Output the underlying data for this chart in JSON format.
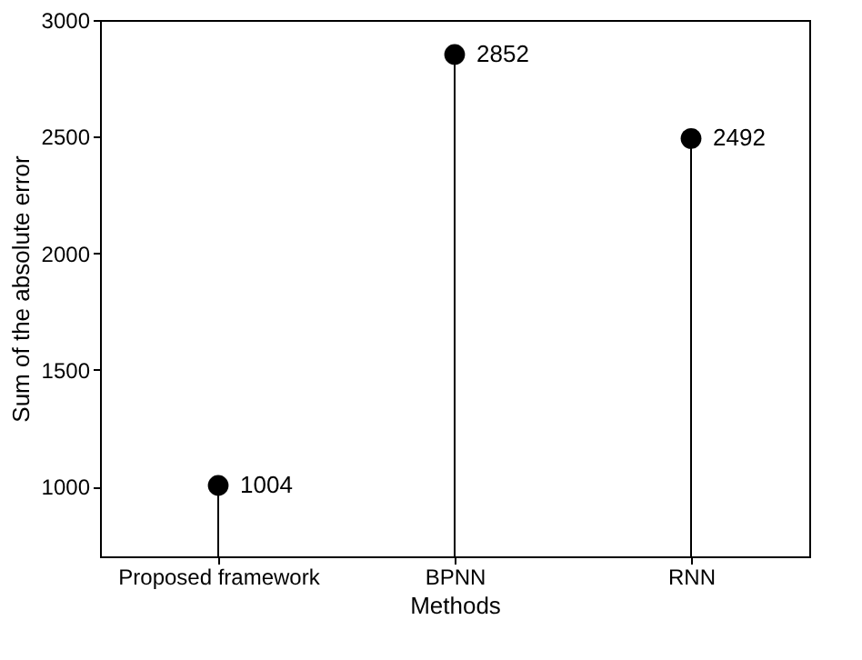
{
  "chart_data": {
    "type": "lollipop",
    "categories": [
      "Proposed framework",
      "BPNN",
      "RNN"
    ],
    "values": [
      1004,
      2852,
      2492
    ],
    "color": "#000000",
    "xlabel": "Methods",
    "ylabel": "Sum of the absolute error",
    "ylim": [
      700,
      3000
    ],
    "yticks": [
      1000,
      1500,
      2000,
      2500,
      3000
    ],
    "data_labels": true,
    "marker": "circle"
  }
}
